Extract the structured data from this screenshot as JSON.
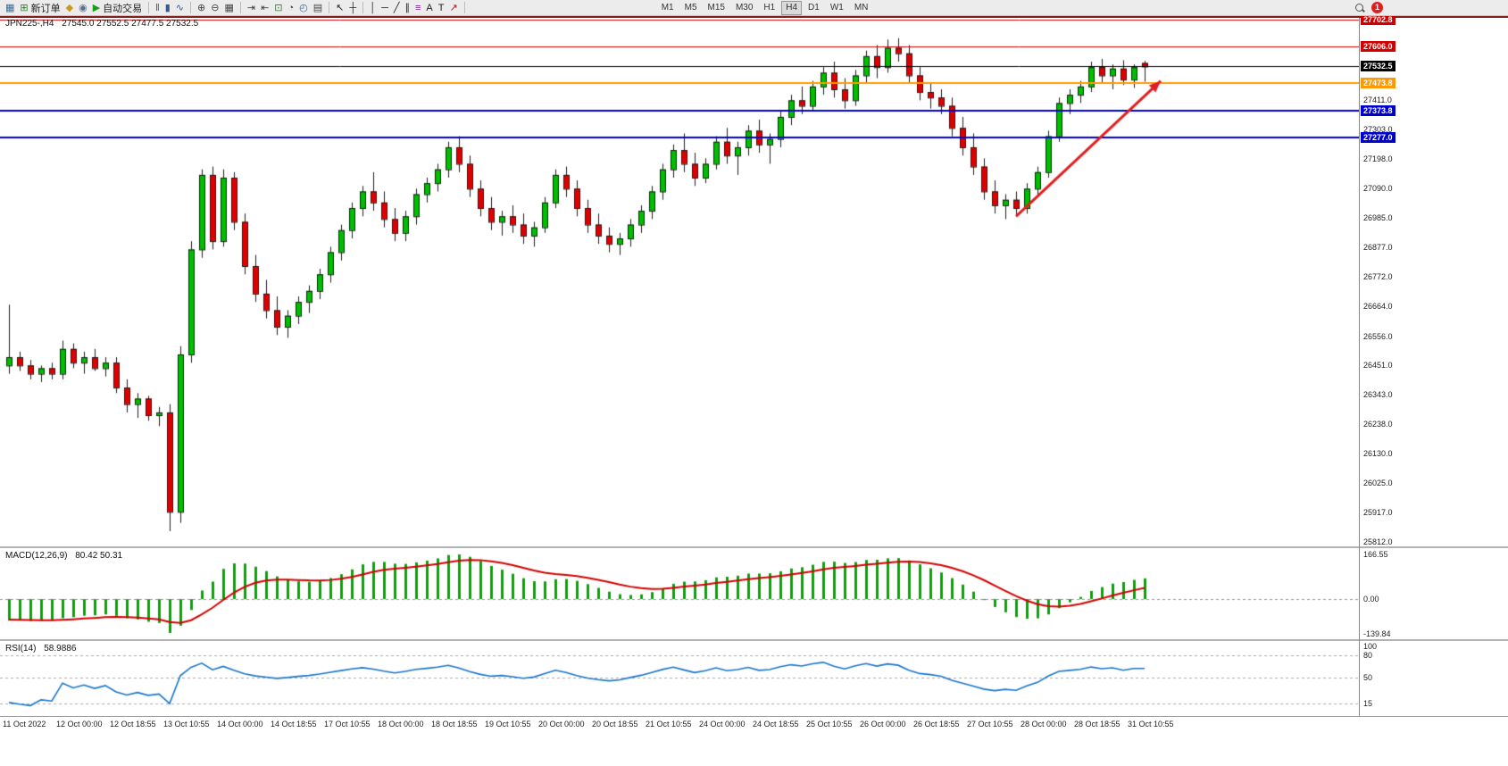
{
  "toolbar": {
    "groups": [
      {
        "name": "trade-group",
        "items": [
          {
            "name": "new-chart-button",
            "glyph": "▦",
            "glyph_color": "#2f6d9d"
          },
          {
            "name": "new-order-button",
            "glyph": "⊞",
            "glyph_color": "#2f7d2f",
            "label": "新订单"
          },
          {
            "name": "history-center-button",
            "glyph": "◆",
            "glyph_color": "#c79b1e"
          },
          {
            "name": "indicators-button",
            "glyph": "◉",
            "glyph_color": "#5a6b8c"
          },
          {
            "name": "autotrading-button",
            "glyph": "▶",
            "glyph_color": "#18a018",
            "label": "自动交易"
          }
        ]
      },
      {
        "name": "chart-type-group",
        "items": [
          {
            "name": "bar-chart-button",
            "glyph": "‖",
            "glyph_color": "#355a8c"
          },
          {
            "name": "candlestick-chart-button",
            "glyph": "▮",
            "glyph_color": "#355a8c"
          },
          {
            "name": "line-chart-button",
            "glyph": "∿",
            "glyph_color": "#355a8c"
          }
        ]
      },
      {
        "name": "zoom-group",
        "items": [
          {
            "name": "zoom-in-button",
            "glyph": "⊕",
            "glyph_color": "#444444"
          },
          {
            "name": "zoom-out-button",
            "glyph": "⊖",
            "glyph_color": "#444444"
          },
          {
            "name": "tile-windows-button",
            "glyph": "▦",
            "glyph_color": "#444444"
          }
        ]
      },
      {
        "name": "scroll-group",
        "items": [
          {
            "name": "auto-scroll-button",
            "glyph": "⇥",
            "glyph_color": "#444444"
          },
          {
            "name": "chart-shift-button",
            "glyph": "⇤",
            "glyph_color": "#444444"
          },
          {
            "name": "new-window-button",
            "glyph": "⊡",
            "glyph_color": "#2f7d2f"
          },
          {
            "name": "data-window-button",
            "glyph": "◔",
            "glyph_color": "#444444"
          },
          {
            "name": "strategy-tester-button",
            "glyph": "◴",
            "glyph_color": "#2f6d9d"
          },
          {
            "name": "news-button",
            "glyph": "▤",
            "glyph_color": "#444444"
          }
        ]
      },
      {
        "name": "cursor-group",
        "items": [
          {
            "name": "cursor-button",
            "glyph": "↖",
            "glyph_color": "#222222"
          },
          {
            "name": "crosshair-button",
            "glyph": "┼",
            "glyph_color": "#222222"
          }
        ]
      },
      {
        "name": "objects-group",
        "items": [
          {
            "name": "vertical-line-button",
            "glyph": "│",
            "glyph_color": "#222222"
          },
          {
            "name": "horizontal-line-button",
            "glyph": "─",
            "glyph_color": "#222222"
          },
          {
            "name": "trendline-button",
            "glyph": "╱",
            "glyph_color": "#222222"
          },
          {
            "name": "channel-button",
            "glyph": "∥",
            "glyph_color": "#222222"
          },
          {
            "name": "fibonacci-button",
            "glyph": "≡",
            "glyph_color": "#7a1fa0"
          },
          {
            "name": "text-button",
            "glyph": "A",
            "glyph_color": "#222222"
          },
          {
            "name": "label-button",
            "glyph": "T",
            "glyph_color": "#222222"
          },
          {
            "name": "arrows-button",
            "glyph": "↗",
            "glyph_color": "#9a2020"
          }
        ]
      }
    ],
    "timeframes": {
      "options": [
        "M1",
        "M5",
        "M15",
        "M30",
        "H1",
        "H4",
        "D1",
        "W1",
        "MN"
      ],
      "active": "H4"
    },
    "right": {
      "notification_count": "1"
    }
  },
  "chart": {
    "symbol_period": "JPN225-,H4",
    "ohlc": "27545.0 27552.5 27477.5 27532.5"
  },
  "chart_data": {
    "type": "candlestick",
    "symbol": "JPN225-",
    "timeframe": "H4",
    "bull_color": "#00BE00",
    "bear_color": "#E00000",
    "outline_color": "#1c1c1c",
    "ylim": [
      25795,
      27715
    ],
    "y_ticks": [
      27411.0,
      27303.0,
      27198.0,
      27090.0,
      26985.0,
      26877.0,
      26772.0,
      26664.0,
      26556.0,
      26451.0,
      26343.0,
      26238.0,
      26130.0,
      26025.0,
      25917.0,
      25812.0
    ],
    "hlines": [
      {
        "price": 27702.8,
        "label": "27702.8",
        "color": "#CE0000",
        "width": 1
      },
      {
        "price": 27606.0,
        "label": "27606.0",
        "color": "#CE0000",
        "width": 1
      },
      {
        "price": 27532.5,
        "label": "27532.5",
        "color": "#000000",
        "width": 1
      },
      {
        "price": 27473.8,
        "label": "27473.8",
        "color": "#FF9900",
        "width": 2
      },
      {
        "price": 27373.8,
        "label": "27373.8",
        "color": "#0000CE",
        "width": 2
      },
      {
        "price": 27277.0,
        "label": "27277.0",
        "color": "#0000CE",
        "width": 2
      }
    ],
    "trend_arrow": {
      "from": {
        "index": 94,
        "price": 26990
      },
      "to": {
        "index": 107.5,
        "price": 27480
      },
      "color": "#E02020"
    },
    "candles": [
      [
        26450,
        26670,
        26420,
        26480
      ],
      [
        26480,
        26500,
        26430,
        26450
      ],
      [
        26450,
        26470,
        26400,
        26420
      ],
      [
        26420,
        26450,
        26390,
        26440
      ],
      [
        26440,
        26460,
        26400,
        26420
      ],
      [
        26420,
        26540,
        26400,
        26510
      ],
      [
        26510,
        26530,
        26440,
        26460
      ],
      [
        26460,
        26500,
        26420,
        26480
      ],
      [
        26480,
        26510,
        26430,
        26440
      ],
      [
        26440,
        26480,
        26410,
        26460
      ],
      [
        26460,
        26480,
        26350,
        26370
      ],
      [
        26370,
        26400,
        26280,
        26310
      ],
      [
        26310,
        26350,
        26260,
        26330
      ],
      [
        26330,
        26340,
        26250,
        26270
      ],
      [
        26270,
        26300,
        26230,
        26280
      ],
      [
        26280,
        26310,
        25850,
        25920
      ],
      [
        25920,
        26520,
        25880,
        26490
      ],
      [
        26490,
        26900,
        26460,
        26870
      ],
      [
        26870,
        27160,
        26840,
        27140
      ],
      [
        27140,
        27170,
        26870,
        26900
      ],
      [
        26900,
        27160,
        26880,
        27130
      ],
      [
        27130,
        27150,
        26940,
        26970
      ],
      [
        26970,
        27000,
        26780,
        26810
      ],
      [
        26810,
        26850,
        26680,
        26710
      ],
      [
        26710,
        26760,
        26620,
        26650
      ],
      [
        26650,
        26700,
        26560,
        26590
      ],
      [
        26590,
        26650,
        26550,
        26630
      ],
      [
        26630,
        26700,
        26600,
        26680
      ],
      [
        26680,
        26740,
        26640,
        26720
      ],
      [
        26720,
        26800,
        26690,
        26780
      ],
      [
        26780,
        26880,
        26750,
        26860
      ],
      [
        26860,
        26960,
        26830,
        26940
      ],
      [
        26940,
        27040,
        26910,
        27020
      ],
      [
        27020,
        27100,
        26990,
        27080
      ],
      [
        27080,
        27150,
        27010,
        27040
      ],
      [
        27040,
        27080,
        26950,
        26980
      ],
      [
        26980,
        27020,
        26900,
        26930
      ],
      [
        26930,
        27010,
        26900,
        26990
      ],
      [
        26990,
        27090,
        26960,
        27070
      ],
      [
        27070,
        27130,
        27040,
        27110
      ],
      [
        27110,
        27180,
        27080,
        27160
      ],
      [
        27160,
        27260,
        27130,
        27240
      ],
      [
        27240,
        27280,
        27150,
        27180
      ],
      [
        27180,
        27210,
        27060,
        27090
      ],
      [
        27090,
        27120,
        26990,
        27020
      ],
      [
        27020,
        27060,
        26940,
        26970
      ],
      [
        26970,
        27010,
        26920,
        26990
      ],
      [
        26990,
        27030,
        26930,
        26960
      ],
      [
        26960,
        27000,
        26890,
        26920
      ],
      [
        26920,
        26970,
        26880,
        26950
      ],
      [
        26950,
        27060,
        26930,
        27040
      ],
      [
        27040,
        27160,
        27020,
        27140
      ],
      [
        27140,
        27170,
        27060,
        27090
      ],
      [
        27090,
        27120,
        26990,
        27020
      ],
      [
        27020,
        27050,
        26930,
        26960
      ],
      [
        26960,
        27000,
        26890,
        26920
      ],
      [
        26920,
        26950,
        26860,
        26890
      ],
      [
        26890,
        26930,
        26850,
        26910
      ],
      [
        26910,
        26980,
        26880,
        26960
      ],
      [
        26960,
        27030,
        26930,
        27010
      ],
      [
        27010,
        27100,
        26980,
        27080
      ],
      [
        27080,
        27180,
        27050,
        27160
      ],
      [
        27160,
        27250,
        27130,
        27230
      ],
      [
        27230,
        27290,
        27150,
        27180
      ],
      [
        27180,
        27220,
        27100,
        27130
      ],
      [
        27130,
        27200,
        27110,
        27180
      ],
      [
        27180,
        27280,
        27160,
        27260
      ],
      [
        27260,
        27310,
        27180,
        27210
      ],
      [
        27210,
        27260,
        27140,
        27240
      ],
      [
        27240,
        27320,
        27210,
        27300
      ],
      [
        27300,
        27340,
        27220,
        27250
      ],
      [
        27250,
        27290,
        27180,
        27270
      ],
      [
        27270,
        27370,
        27240,
        27350
      ],
      [
        27350,
        27430,
        27320,
        27410
      ],
      [
        27410,
        27460,
        27360,
        27390
      ],
      [
        27390,
        27480,
        27370,
        27460
      ],
      [
        27460,
        27530,
        27430,
        27510
      ],
      [
        27510,
        27550,
        27420,
        27450
      ],
      [
        27450,
        27490,
        27380,
        27410
      ],
      [
        27410,
        27520,
        27390,
        27500
      ],
      [
        27500,
        27590,
        27470,
        27570
      ],
      [
        27570,
        27610,
        27490,
        27530
      ],
      [
        27530,
        27630,
        27510,
        27600
      ],
      [
        27600,
        27635,
        27550,
        27580
      ],
      [
        27580,
        27610,
        27470,
        27500
      ],
      [
        27500,
        27530,
        27410,
        27440
      ],
      [
        27440,
        27470,
        27380,
        27420
      ],
      [
        27420,
        27450,
        27360,
        27390
      ],
      [
        27390,
        27420,
        27280,
        27310
      ],
      [
        27310,
        27350,
        27210,
        27240
      ],
      [
        27240,
        27290,
        27140,
        27170
      ],
      [
        27170,
        27200,
        27050,
        27080
      ],
      [
        27080,
        27120,
        27000,
        27030
      ],
      [
        27030,
        27070,
        26980,
        27050
      ],
      [
        27050,
        27080,
        26990,
        27020
      ],
      [
        27020,
        27110,
        27000,
        27090
      ],
      [
        27090,
        27170,
        27060,
        27150
      ],
      [
        27150,
        27300,
        27130,
        27280
      ],
      [
        27280,
        27420,
        27260,
        27400
      ],
      [
        27400,
        27450,
        27360,
        27430
      ],
      [
        27430,
        27480,
        27400,
        27460
      ],
      [
        27460,
        27550,
        27440,
        27530
      ],
      [
        27530,
        27560,
        27470,
        27500
      ],
      [
        27500,
        27540,
        27450,
        27525
      ],
      [
        27525,
        27555,
        27465,
        27485
      ],
      [
        27485,
        27540,
        27455,
        27530
      ],
      [
        27545,
        27552.5,
        27477.5,
        27532.5
      ]
    ],
    "x_labels": [
      {
        "i": 0,
        "t": "11 Oct 2022"
      },
      {
        "i": 5,
        "t": "12 Oct 00:00"
      },
      {
        "i": 10,
        "t": "12 Oct 18:55"
      },
      {
        "i": 15,
        "t": "13 Oct 10:55"
      },
      {
        "i": 20,
        "t": "14 Oct 00:00"
      },
      {
        "i": 25,
        "t": "14 Oct 18:55"
      },
      {
        "i": 30,
        "t": "17 Oct 10:55"
      },
      {
        "i": 35,
        "t": "18 Oct 00:00"
      },
      {
        "i": 40,
        "t": "18 Oct 18:55"
      },
      {
        "i": 45,
        "t": "19 Oct 10:55"
      },
      {
        "i": 50,
        "t": "20 Oct 00:00"
      },
      {
        "i": 55,
        "t": "20 Oct 18:55"
      },
      {
        "i": 60,
        "t": "21 Oct 10:55"
      },
      {
        "i": 65,
        "t": "24 Oct 00:00"
      },
      {
        "i": 70,
        "t": "24 Oct 18:55"
      },
      {
        "i": 75,
        "t": "25 Oct 10:55"
      },
      {
        "i": 80,
        "t": "26 Oct 00:00"
      },
      {
        "i": 85,
        "t": "26 Oct 18:55"
      },
      {
        "i": 90,
        "t": "27 Oct 10:55"
      },
      {
        "i": 95,
        "t": "28 Oct 00:00"
      },
      {
        "i": 100,
        "t": "28 Oct 18:55"
      },
      {
        "i": 105,
        "t": "31 Oct 10:55"
      }
    ],
    "indicators": [
      {
        "type": "macd",
        "label": "MACD(12,26,9)",
        "values_text": "80.42 50.31",
        "histogram_color": "#00A800",
        "signal_color": "#D40000",
        "scale_labels": [
          "166.55",
          "0.00",
          "-139.84"
        ]
      },
      {
        "type": "rsi",
        "label": "RSI(14)",
        "value_text": "58.9886",
        "line_color": "#1874CD",
        "levels": [
          80,
          50,
          15
        ],
        "range": [
          0,
          100
        ],
        "scale_labels": [
          "100",
          "80",
          "50",
          "15"
        ]
      }
    ]
  }
}
